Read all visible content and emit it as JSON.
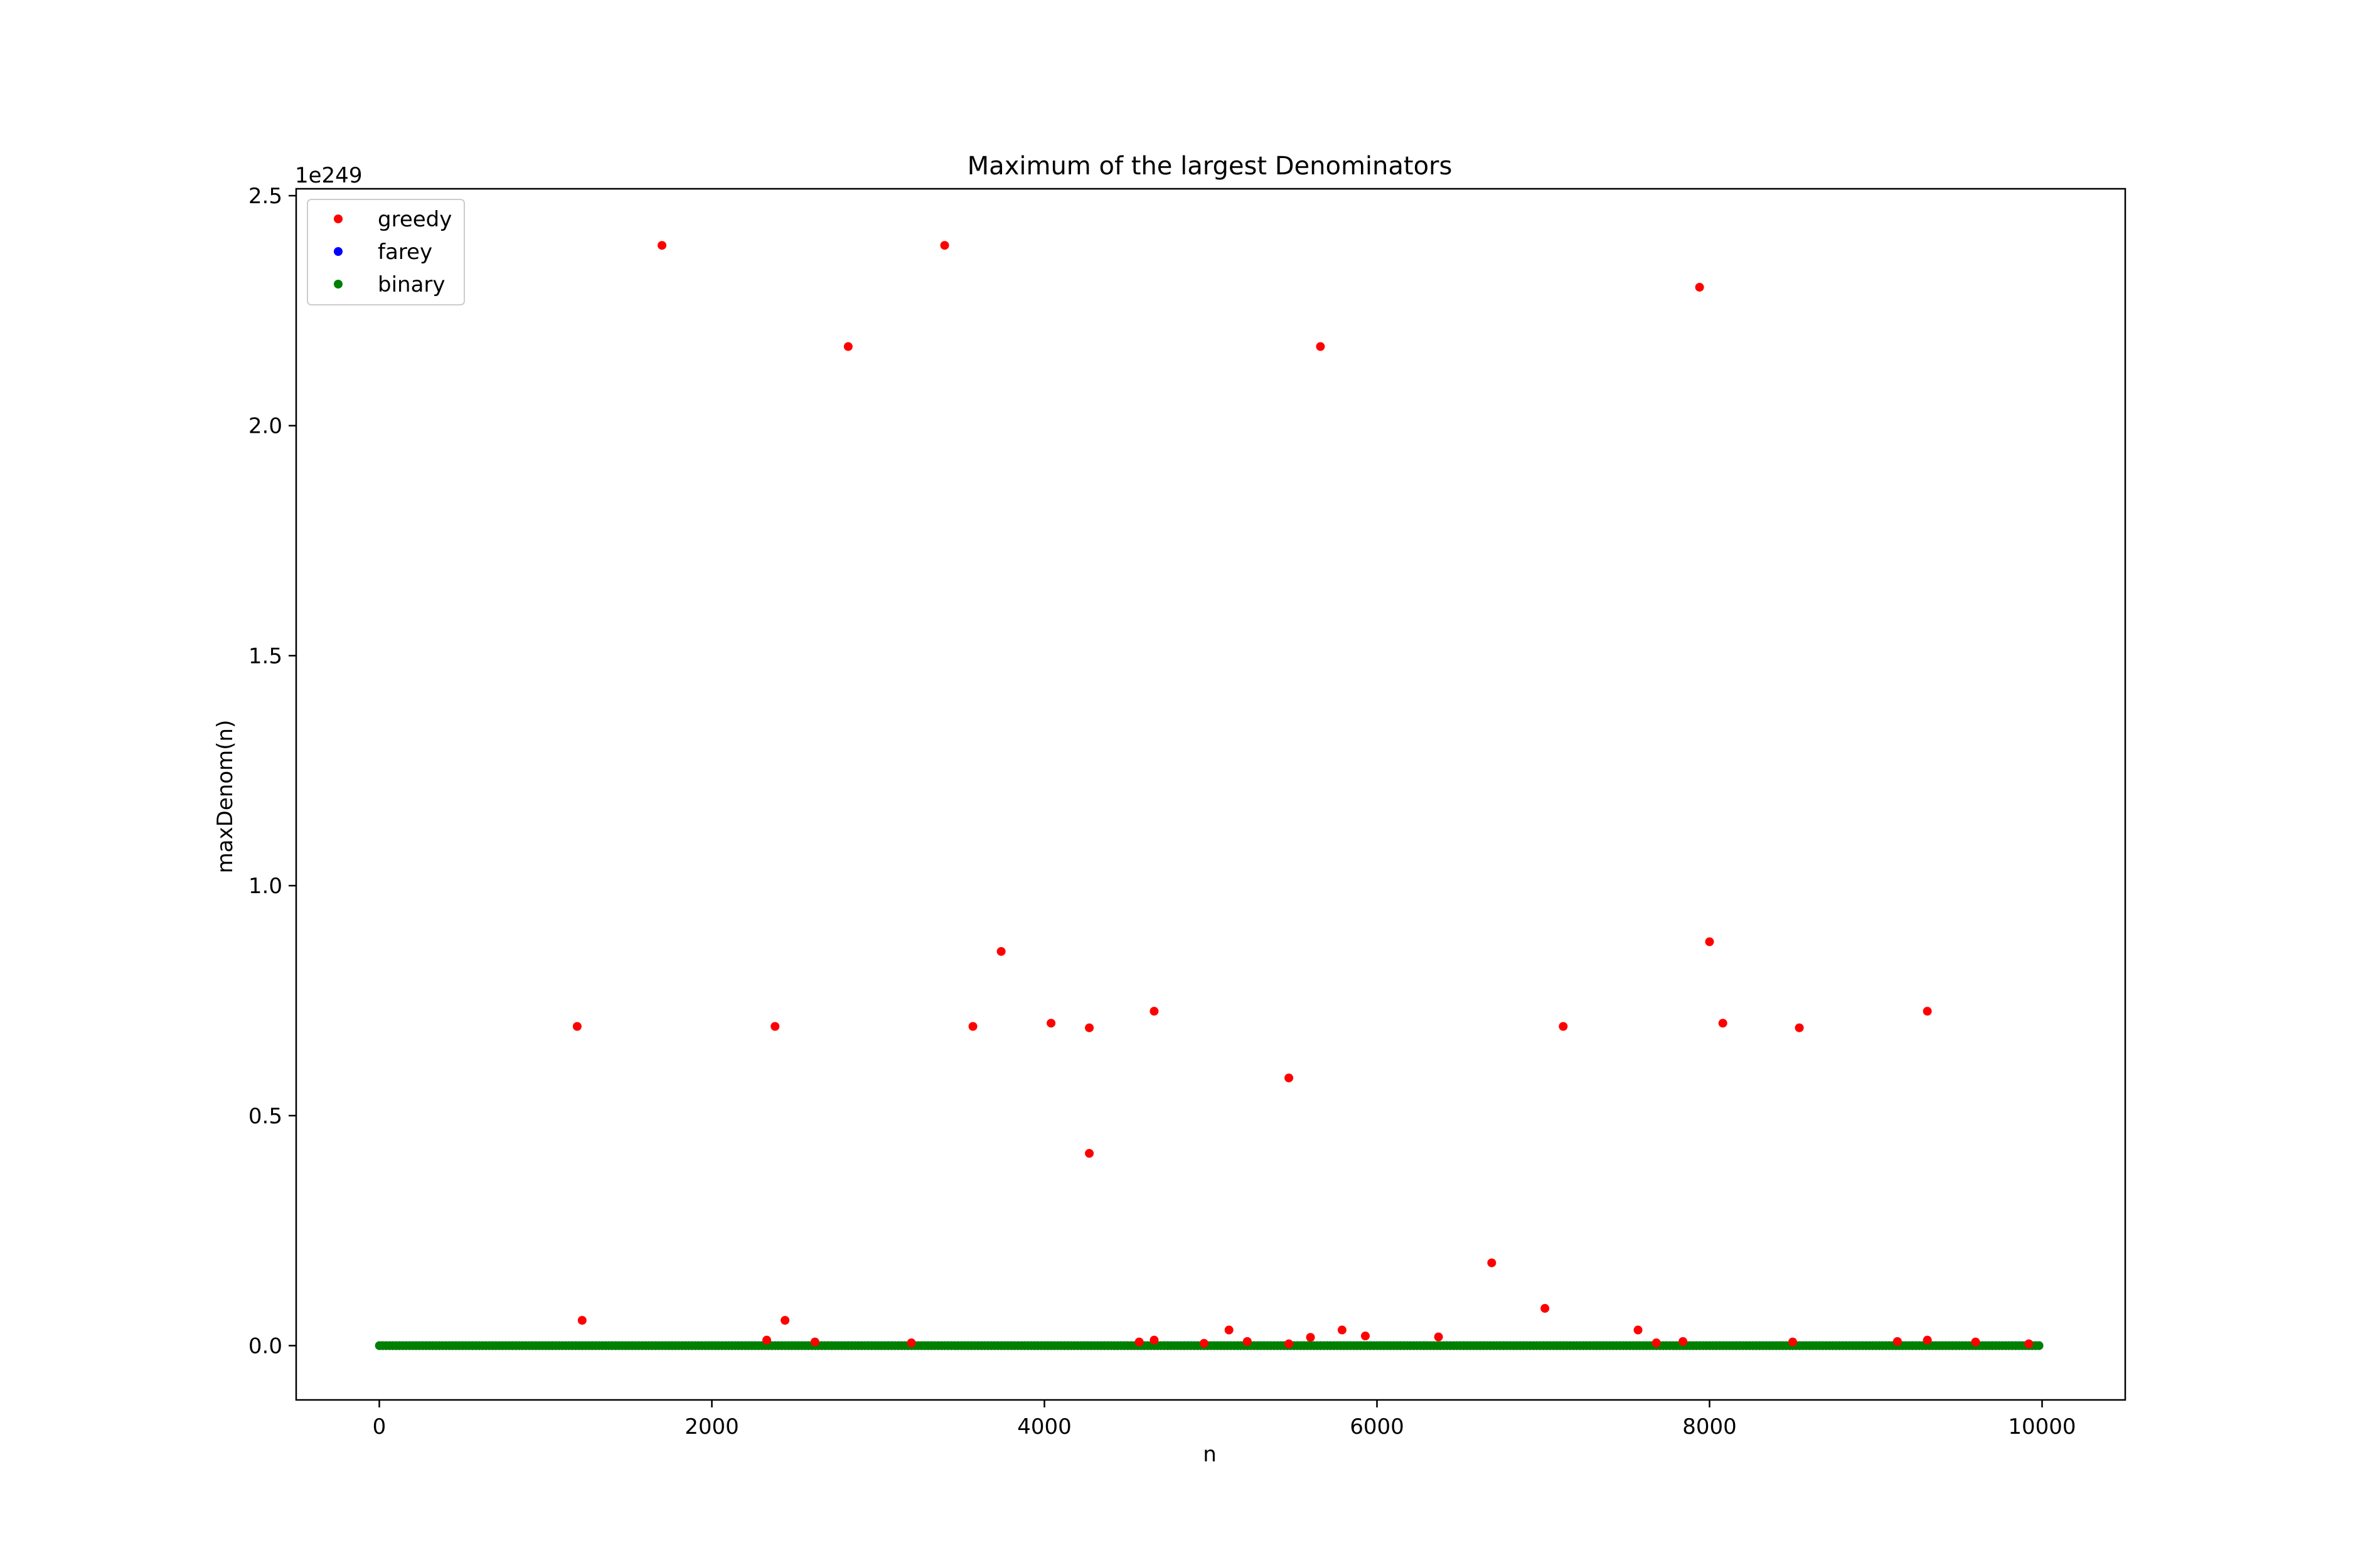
{
  "chart_data": {
    "type": "scatter",
    "title": "Maximum of the largest Denominators",
    "xlabel": "n",
    "ylabel": "maxDenom(n)",
    "y_offset_text": "1e249",
    "y_scale_factor": "1e249",
    "xlim": [
      -500,
      10500
    ],
    "ylim": [
      -0.118,
      2.515
    ],
    "x_ticks": [
      0,
      2000,
      4000,
      6000,
      8000,
      10000
    ],
    "x_tick_labels": [
      "0",
      "2000",
      "4000",
      "6000",
      "8000",
      "10000"
    ],
    "y_ticks": [
      0.0,
      0.5,
      1.0,
      1.5,
      2.0,
      2.5
    ],
    "y_tick_labels": [
      "0.0",
      "0.5",
      "1.0",
      "1.5",
      "2.0",
      "2.5"
    ],
    "grid": false,
    "legend_position": "upper-left",
    "series": [
      {
        "name": "greedy",
        "color": "#ff0000",
        "x": [
          1190,
          1220,
          1700,
          2330,
          2380,
          2440,
          2620,
          2820,
          3200,
          3400,
          3570,
          3740,
          4040,
          4270,
          4270,
          4570,
          4660,
          4660,
          4960,
          5110,
          5220,
          5470,
          5470,
          5600,
          5660,
          5790,
          5930,
          6370,
          6690,
          7010,
          7120,
          7570,
          7680,
          7840,
          7940,
          8000,
          8080,
          8500,
          8540,
          9130,
          9310,
          9310,
          9600,
          9920
        ],
        "y": [
          0.694,
          0.055,
          2.392,
          0.012,
          0.694,
          0.055,
          0.008,
          2.172,
          0.006,
          2.392,
          0.694,
          0.857,
          0.701,
          0.691,
          0.418,
          0.008,
          0.727,
          0.012,
          0.005,
          0.034,
          0.009,
          0.582,
          0.004,
          0.018,
          2.172,
          0.034,
          0.021,
          0.019,
          0.18,
          0.081,
          0.694,
          0.034,
          0.006,
          0.009,
          2.301,
          0.878,
          0.701,
          0.008,
          0.691,
          0.009,
          0.727,
          0.012,
          0.008,
          0.004
        ]
      },
      {
        "name": "farey",
        "color": "#0000ff",
        "x_range": [
          1,
          10000
        ],
        "y_constant": 0.0
      },
      {
        "name": "binary",
        "color": "#008000",
        "x_range": [
          1,
          10000
        ],
        "y_constant": 0.0
      }
    ]
  }
}
